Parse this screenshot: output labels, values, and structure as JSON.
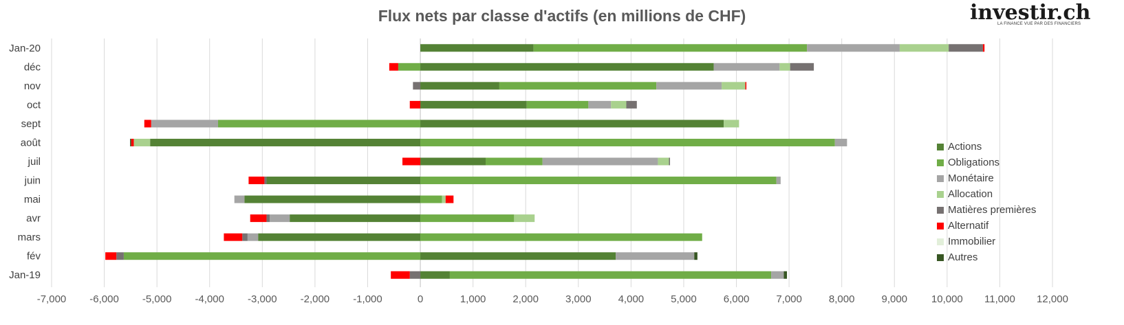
{
  "title": "Flux nets par classe d'actifs (en millions de CHF)",
  "logo": {
    "brand": "investir.ch",
    "tagline": "LA FINANCE VUE PAR DES FINANCIERS"
  },
  "chart_data": {
    "type": "bar",
    "orientation": "horizontal",
    "stacked": true,
    "title": "Flux nets par classe d'actifs (en millions de CHF)",
    "xlim": [
      -7000,
      12000
    ],
    "xticks": [
      -7000,
      -6000,
      -5000,
      -4000,
      -3000,
      -2000,
      -1000,
      0,
      1000,
      2000,
      3000,
      4000,
      5000,
      6000,
      7000,
      8000,
      9000,
      10000,
      11000,
      12000
    ],
    "xtick_labels": [
      "-7,000",
      "-6,000",
      "-5,000",
      "-4,000",
      "-3,000",
      "-2,000",
      "-1,000",
      "0",
      "1,000",
      "2,000",
      "3,000",
      "4,000",
      "5,000",
      "6,000",
      "7,000",
      "8,000",
      "9,000",
      "10,000",
      "11,000",
      "12,000"
    ],
    "grid": "vertical",
    "legend_position": "right",
    "categories": [
      "Jan-20",
      "déc",
      "nov",
      "oct",
      "sept",
      "août",
      "juil",
      "juin",
      "mai",
      "avr",
      "mars",
      "fév",
      "Jan-19"
    ],
    "series": [
      {
        "name": "Actions",
        "color": "#548235",
        "values": [
          2150,
          5570,
          1500,
          2020,
          5760,
          -5130,
          1240,
          -2920,
          -3340,
          -2480,
          -3080,
          3710,
          560
        ]
      },
      {
        "name": "Obligations",
        "color": "#70AD47",
        "values": [
          5190,
          -420,
          2980,
          1170,
          -3840,
          7870,
          1080,
          6760,
          410,
          1780,
          5350,
          -5630,
          6100
        ]
      },
      {
        "name": "Monétaire",
        "color": "#A5A5A5",
        "values": [
          1760,
          1250,
          1240,
          430,
          -1270,
          230,
          2190,
          80,
          -190,
          -380,
          -200,
          1490,
          240
        ]
      },
      {
        "name": "Allocation",
        "color": "#A9D18E",
        "values": [
          930,
          200,
          450,
          290,
          290,
          -310,
          210,
          0,
          70,
          390,
          0,
          0,
          0
        ]
      },
      {
        "name": "Matières premières",
        "color": "#767171",
        "values": [
          650,
          450,
          -140,
          200,
          0,
          0,
          20,
          -40,
          0,
          -60,
          -100,
          -140,
          -200
        ]
      },
      {
        "name": "Alternatif",
        "color": "#FF0000",
        "values": [
          30,
          -170,
          20,
          -200,
          -130,
          -50,
          -340,
          -300,
          150,
          -310,
          -350,
          -210,
          -360
        ]
      },
      {
        "name": "Immobilier",
        "color": "#E2EFDA",
        "values": [
          0,
          0,
          0,
          0,
          0,
          0,
          0,
          0,
          0,
          0,
          0,
          0,
          0
        ]
      },
      {
        "name": "Autres",
        "color": "#375623",
        "values": [
          0,
          0,
          0,
          0,
          0,
          -20,
          0,
          0,
          0,
          0,
          0,
          60,
          60
        ]
      }
    ]
  }
}
